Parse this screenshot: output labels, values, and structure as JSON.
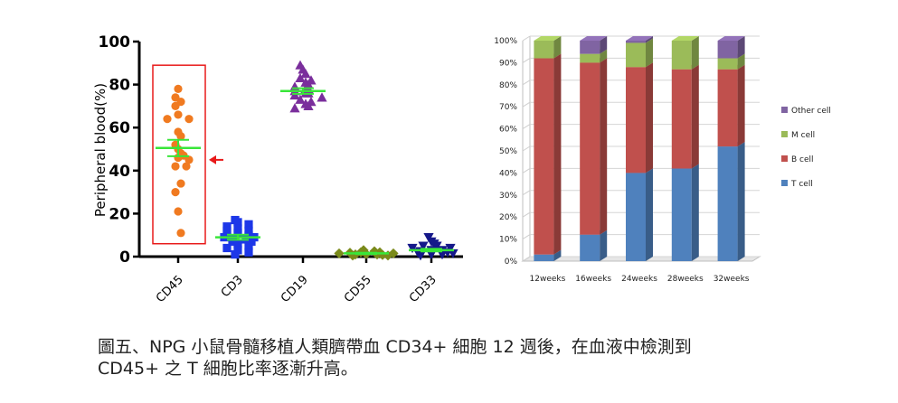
{
  "chart_data": [
    {
      "type": "scatter",
      "ylabel": "Peripheral blood(%)",
      "ylim": [
        0,
        100
      ],
      "yticks": [
        "0",
        "20",
        "40",
        "60",
        "80",
        "100"
      ],
      "categories": [
        "CD45",
        "CD3",
        "CD19",
        "CD55",
        "CD33"
      ],
      "colors": {
        "CD45": "#f07a20",
        "CD3": "#1d37e8",
        "CD19": "#7a2e9c",
        "CD55": "#7a8a1a",
        "CD33": "#15188a",
        "mean_line": "#39e639",
        "highlight_box": "#e81a1a",
        "arrow": "#e81a1a"
      },
      "markers": {
        "CD45": "circle",
        "CD3": "square",
        "CD19": "triangle-up",
        "CD55": "diamond",
        "CD33": "triangle-down"
      },
      "series": [
        {
          "category": "CD45",
          "values": [
            74,
            78,
            72,
            70,
            66,
            64,
            64,
            58,
            56,
            52,
            50,
            48,
            47,
            46,
            45,
            42,
            42,
            34,
            30,
            21,
            11
          ],
          "mean": 50.5,
          "sem": 3.8
        },
        {
          "category": "CD3",
          "values": [
            17,
            16,
            15,
            14,
            13,
            12,
            12,
            11,
            10,
            10,
            9,
            9,
            8,
            8,
            7,
            7,
            6,
            5,
            4,
            3,
            2,
            1
          ],
          "mean": 9,
          "sem": 1.2
        },
        {
          "category": "CD19",
          "values": [
            89,
            87,
            85,
            83,
            82,
            81,
            80,
            79,
            78,
            78,
            77,
            76,
            76,
            75,
            74,
            73,
            72,
            71,
            70,
            69
          ],
          "mean": 77,
          "sem": 1.3
        },
        {
          "category": "CD55",
          "values": [
            3,
            2.5,
            2,
            2,
            1.8,
            1.5,
            1.5,
            1.2,
            1,
            1,
            0.8,
            0.5,
            0.5
          ],
          "mean": 1.5,
          "sem": 0.3
        },
        {
          "category": "CD33",
          "values": [
            9,
            7,
            6,
            5,
            5,
            4,
            4,
            3,
            3,
            2.5,
            2,
            2,
            1.5,
            1,
            1,
            0.5
          ],
          "mean": 3,
          "sem": 0.6
        }
      ],
      "highlight": {
        "category": "CD45",
        "ylim": [
          6,
          89
        ]
      },
      "arrow_value": 45
    },
    {
      "type": "bar",
      "stacked": true,
      "normalized": true,
      "categories": [
        "12weeks",
        "16weeks",
        "24weeks",
        "28weeks",
        "32weeks"
      ],
      "ylim": [
        0,
        100
      ],
      "yticks": [
        "0%",
        "10%",
        "20%",
        "30%",
        "40%",
        "50%",
        "60%",
        "70%",
        "80%",
        "90%",
        "100%"
      ],
      "legend_position": "right",
      "series": [
        {
          "name": "T cell",
          "color": "#4f81bd",
          "values": [
            3,
            12,
            40,
            42,
            52
          ]
        },
        {
          "name": "B cell",
          "color": "#c0504d",
          "values": [
            89,
            78,
            48,
            45,
            35
          ]
        },
        {
          "name": "M cell",
          "color": "#9bbb59",
          "values": [
            8,
            4,
            11,
            13,
            5
          ]
        },
        {
          "name": "Other cell",
          "color": "#8064a2",
          "values": [
            0,
            6,
            1,
            0,
            8
          ]
        }
      ]
    }
  ],
  "caption": {
    "line1": "圖五、NPG 小鼠骨髓移植人類臍帶血 CD34+ 細胞 12 週後，在血液中檢測到",
    "line2": "CD45+ 之 T 細胞比率逐漸升高。"
  }
}
